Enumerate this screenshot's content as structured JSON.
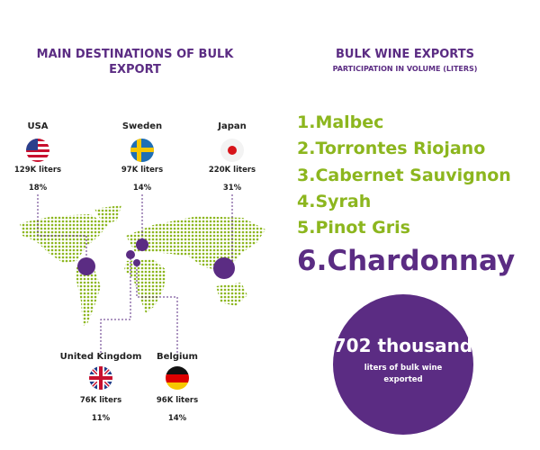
{
  "left": {
    "title": "MAIN DESTINATIONS OF BULK EXPORT",
    "destinations": [
      {
        "name": "USA",
        "volume": "129K liters",
        "share": "18%"
      },
      {
        "name": "Sweden",
        "volume": "97K liters",
        "share": "14%"
      },
      {
        "name": "Japan",
        "volume": "220K liters",
        "share": "31%"
      },
      {
        "name": "United Kingdom",
        "volume": "76K liters",
        "share": "11%"
      },
      {
        "name": "Belgium",
        "volume": "96K liters",
        "share": "14%"
      }
    ]
  },
  "right": {
    "title": "BULK WINE EXPORTS",
    "subtitle": "PARTICIPATION IN VOLUME (LITERS)",
    "varieties": [
      "1.Malbec",
      "2.Torrontes Riojano",
      "3.Cabernet Sauvignon",
      "4.Syrah",
      "5.Pinot Gris",
      "6.Chardonnay"
    ],
    "total": {
      "value": "702 thousand",
      "caption": "liters of bulk wine exported"
    }
  }
}
